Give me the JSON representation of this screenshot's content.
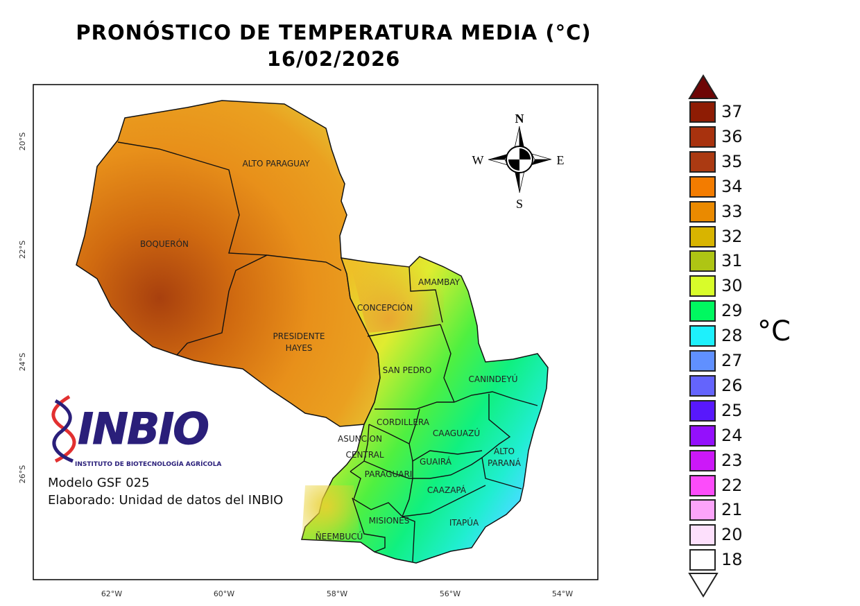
{
  "title": {
    "line1": "PRONÓSTICO DE TEMPERATURA MEDIA (°C)",
    "line2": "16/02/2026"
  },
  "map": {
    "lon_ticks": [
      "62°W",
      "60°W",
      "58°W",
      "56°W",
      "54°W"
    ],
    "lat_ticks": [
      "20°S",
      "22°S",
      "24°S",
      "26°S"
    ],
    "departments": {
      "alto_paraguay": "ALTO PARAGUAY",
      "boqueron": "BOQUERÓN",
      "presidente_hayes_1": "PRESIDENTE",
      "presidente_hayes_2": "HAYES",
      "concepcion": "CONCEPCIÓN",
      "amambay": "AMAMBAY",
      "san_pedro": "SAN PEDRO",
      "canindeyu": "CANINDEYÚ",
      "cordillera": "CORDILLERA",
      "caaguazu": "CAAGUAZÚ",
      "asuncion": "ASUNCION",
      "central": "CENTRAL",
      "alto_parana_1": "ALTO",
      "alto_parana_2": "PARANÁ",
      "guaira": "GUAIRÁ",
      "paraguari": "PARAGUARI",
      "caazapa": "CAAZAPÁ",
      "misiones": "MISIONES",
      "itapua": "ITAPÚA",
      "neembucu": "ÑEEMBUCÚ"
    },
    "compass": {
      "n": "N",
      "s": "S",
      "e": "E",
      "w": "W"
    }
  },
  "logo": {
    "name": "INBIO",
    "subtitle": "INSTITUTO DE BIOTECNOLOGÍA AGRÍCOLA"
  },
  "info": {
    "model": "Modelo GSF 025",
    "credit": "Elaborado: Unidad de datos del INBIO"
  },
  "legend": {
    "unit": "°C",
    "over_color": "#6e0606",
    "under_color": "#ffffff",
    "items": [
      {
        "label": "37",
        "color": "#8e1c04"
      },
      {
        "label": "36",
        "color": "#a8320e"
      },
      {
        "label": "35",
        "color": "#ab3a12"
      },
      {
        "label": "34",
        "color": "#f37c00"
      },
      {
        "label": "33",
        "color": "#ea8a00"
      },
      {
        "label": "32",
        "color": "#d8b400"
      },
      {
        "label": "31",
        "color": "#aec514"
      },
      {
        "label": "30",
        "color": "#d8fc2a"
      },
      {
        "label": "29",
        "color": "#00f860"
      },
      {
        "label": "28",
        "color": "#1ef0fc"
      },
      {
        "label": "27",
        "color": "#6090ff"
      },
      {
        "label": "26",
        "color": "#6464fc"
      },
      {
        "label": "25",
        "color": "#5818fc"
      },
      {
        "label": "24",
        "color": "#9410fc"
      },
      {
        "label": "23",
        "color": "#cc18f8"
      },
      {
        "label": "22",
        "color": "#fc4cfa"
      },
      {
        "label": "21",
        "color": "#fca4fa"
      },
      {
        "label": "20",
        "color": "#fde0fc"
      },
      {
        "label": "18",
        "color": "#ffffff"
      }
    ]
  }
}
